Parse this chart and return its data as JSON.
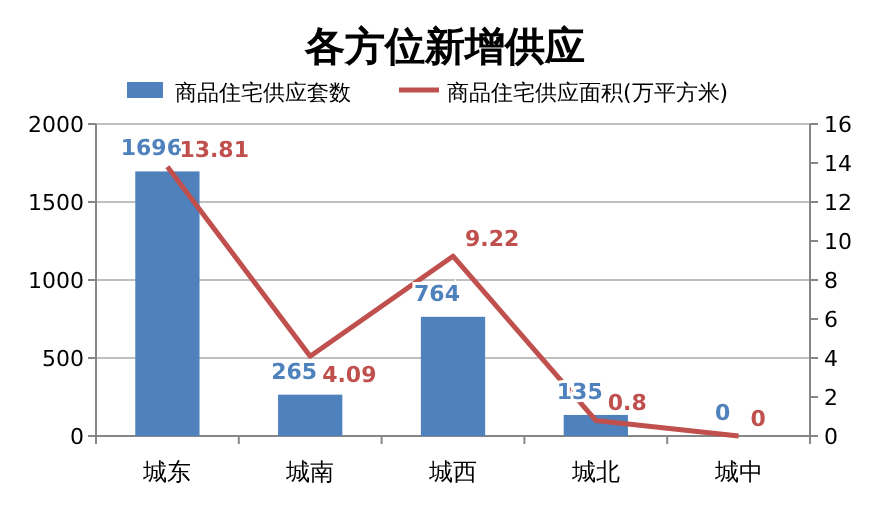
{
  "chart_data": {
    "type": "bar",
    "title": "各方位新增供应",
    "categories": [
      "城东",
      "城南",
      "城西",
      "城北",
      "城中"
    ],
    "series": [
      {
        "name": "商品住宅供应套数",
        "color": "#4f81bd",
        "values": [
          1696,
          265,
          764,
          135,
          0
        ]
      },
      {
        "name": "商品住宅供应面积(万平方米)",
        "type": "line",
        "axis": "y2",
        "color": "#c0504d",
        "values": [
          13.81,
          4.09,
          9.22,
          0.8,
          0
        ]
      }
    ],
    "ylim": [
      0,
      2000
    ],
    "yticks": [
      0,
      500,
      1000,
      1500,
      2000
    ],
    "y2lim": [
      0,
      16
    ],
    "y2ticks": [
      0,
      2,
      4,
      6,
      8,
      10,
      12,
      14,
      16
    ],
    "grid": "y",
    "legend": "top",
    "data_labels": true,
    "marker": "none",
    "line_style": "solid"
  }
}
